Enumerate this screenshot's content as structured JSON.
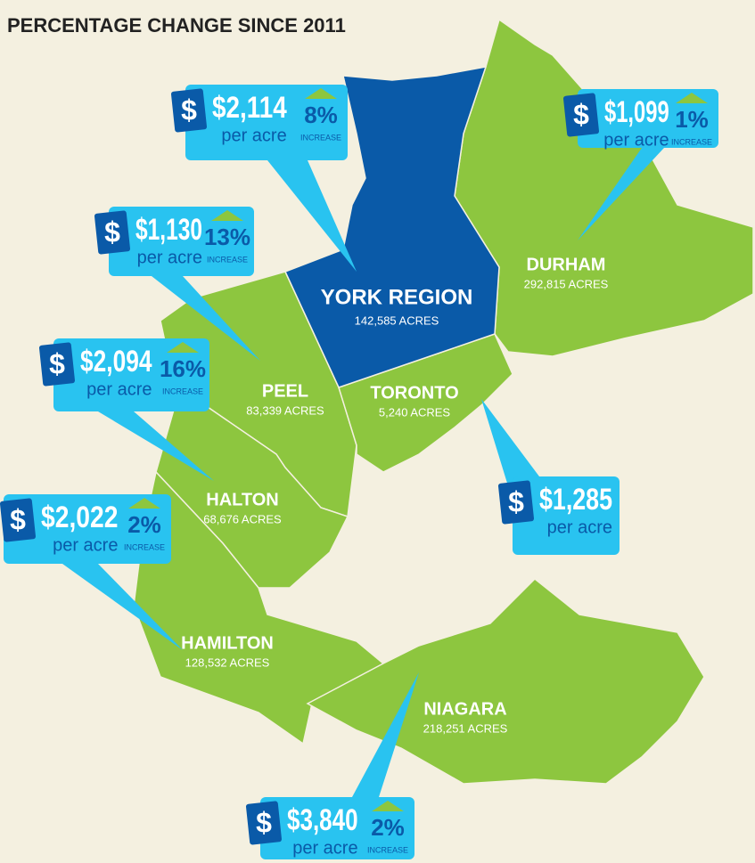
{
  "title": "PERCENTAGE CHANGE SINCE 2011",
  "regions": [
    {
      "name": "YORK REGION",
      "area": "142,585 ACRES"
    },
    {
      "name": "DURHAM",
      "area": "292,815 ACRES"
    },
    {
      "name": "PEEL",
      "area": "83,339 ACRES"
    },
    {
      "name": "TORONTO",
      "area": "5,240 ACRES"
    },
    {
      "name": "HALTON",
      "area": "68,676 ACRES"
    },
    {
      "name": "HAMILTON",
      "area": "128,532 ACRES"
    },
    {
      "name": "NIAGARA",
      "area": "218,251 ACRES"
    }
  ],
  "callouts": [
    {
      "icon": "$",
      "price": "$2,114",
      "unit": "per acre",
      "change": "8%",
      "change_label": "INCREASE"
    },
    {
      "icon": "$",
      "price": "$1,099",
      "unit": "per acre",
      "change": "1%",
      "change_label": "INCREASE"
    },
    {
      "icon": "$",
      "price": "$1,130",
      "unit": "per acre",
      "change": "13%",
      "change_label": "INCREASE"
    },
    {
      "icon": "$",
      "price": "$2,094",
      "unit": "per acre",
      "change": "16%",
      "change_label": "INCREASE"
    },
    {
      "icon": "$",
      "price": "$2,022",
      "unit": "per acre",
      "change": "2%",
      "change_label": "INCREASE"
    },
    {
      "icon": "$",
      "price": "$1,285",
      "unit": "per acre"
    },
    {
      "icon": "$",
      "price": "$3,840",
      "unit": "per acre",
      "change": "2%",
      "change_label": "INCREASE"
    }
  ]
}
